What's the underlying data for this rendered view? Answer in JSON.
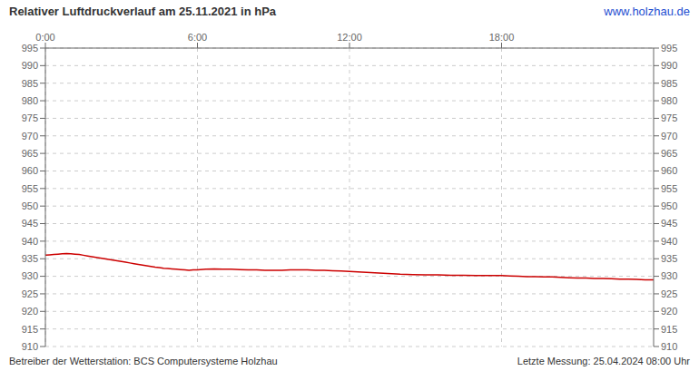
{
  "chart_data": {
    "type": "line",
    "title": "Relativer Luftdruckverlauf am 25.11.2021 in hPa",
    "annotations": [
      "www.holzhau.de",
      "Betreiber der Wetterstation: BCS Computersysteme Holzhau",
      "Letzte Messung: 25.04.2024 08:00 Uhr"
    ],
    "x": [
      0,
      10,
      20,
      30,
      40,
      50,
      60,
      70,
      80,
      90,
      100,
      110,
      120,
      130,
      140,
      150,
      160,
      170,
      180,
      190,
      200,
      210,
      220,
      230,
      240,
      250,
      260,
      270,
      280,
      290,
      300,
      310,
      320,
      330,
      340,
      350,
      360,
      380,
      400,
      420,
      440,
      460,
      480,
      500,
      520,
      540,
      560,
      580,
      600,
      620,
      640,
      660,
      680,
      700,
      720,
      750,
      780,
      810,
      840,
      870,
      900,
      930,
      960,
      990,
      1020,
      1050,
      1080,
      1100,
      1120,
      1140,
      1160,
      1180,
      1200,
      1220,
      1240,
      1260,
      1280,
      1300,
      1320,
      1340,
      1360,
      1380,
      1400,
      1420,
      1440
    ],
    "series": [
      {
        "color": "#cc0000",
        "values": [
          936.0,
          936.1,
          936.2,
          936.3,
          936.4,
          936.5,
          936.4,
          936.3,
          936.2,
          936.0,
          935.8,
          935.6,
          935.4,
          935.2,
          935.0,
          934.8,
          934.6,
          934.4,
          934.2,
          934.0,
          933.8,
          933.6,
          933.4,
          933.2,
          933.0,
          932.8,
          932.6,
          932.5,
          932.3,
          932.2,
          932.1,
          932.0,
          931.9,
          931.8,
          931.7,
          931.8,
          931.8,
          932.0,
          932.1,
          932.0,
          932.0,
          931.9,
          931.8,
          931.8,
          931.7,
          931.7,
          931.7,
          931.8,
          931.8,
          931.8,
          931.7,
          931.7,
          931.6,
          931.5,
          931.4,
          931.2,
          931.0,
          930.8,
          930.6,
          930.5,
          930.4,
          930.4,
          930.3,
          930.3,
          930.2,
          930.2,
          930.2,
          930.1,
          930.0,
          929.9,
          929.9,
          929.8,
          929.8,
          929.7,
          929.6,
          929.5,
          929.5,
          929.4,
          929.4,
          929.3,
          929.2,
          929.2,
          929.1,
          929.0,
          929.0
        ]
      }
    ],
    "xlim": [
      0,
      1440
    ],
    "xticks": [
      {
        "value": 0,
        "label": "0:00"
      },
      {
        "value": 360,
        "label": "6:00"
      },
      {
        "value": 720,
        "label": "12:00"
      },
      {
        "value": 1080,
        "label": "18:00"
      }
    ],
    "ylim": [
      910,
      995
    ],
    "yticks": [
      910,
      915,
      920,
      925,
      930,
      935,
      940,
      945,
      950,
      955,
      960,
      965,
      970,
      975,
      980,
      985,
      990,
      995
    ],
    "y2lim": [
      910,
      995
    ],
    "y2ticks": [
      910,
      915,
      920,
      925,
      930,
      935,
      940,
      945,
      950,
      955,
      960,
      965,
      970,
      975,
      980,
      985,
      990,
      995
    ],
    "grid": true
  }
}
